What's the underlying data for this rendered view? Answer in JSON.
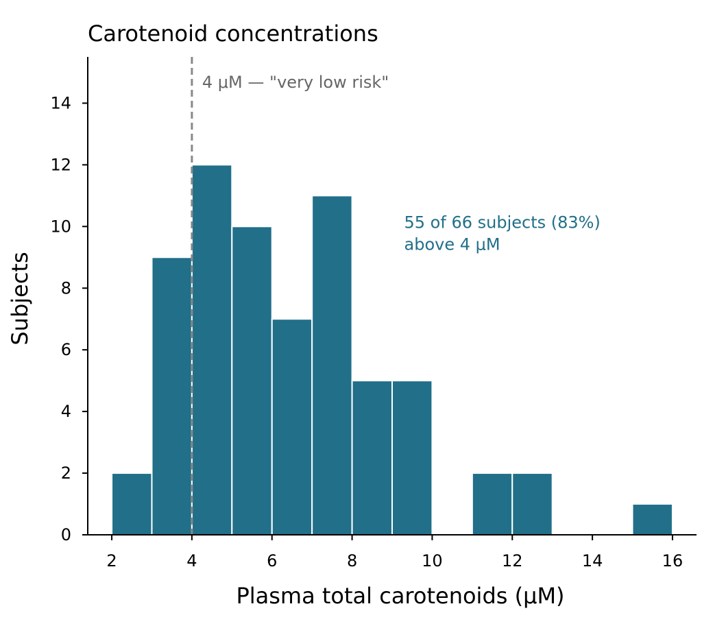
{
  "chart_data": {
    "type": "bar",
    "title": "Carotenoid concentrations",
    "xlabel": "Plasma total carotenoids (μM)",
    "ylabel": "Subjects",
    "bins": [
      {
        "start": 2,
        "end": 3,
        "count": 2
      },
      {
        "start": 3,
        "end": 4,
        "count": 9
      },
      {
        "start": 4,
        "end": 5,
        "count": 12
      },
      {
        "start": 5,
        "end": 6,
        "count": 10
      },
      {
        "start": 6,
        "end": 7,
        "count": 7
      },
      {
        "start": 7,
        "end": 8,
        "count": 11
      },
      {
        "start": 8,
        "end": 9,
        "count": 5
      },
      {
        "start": 9,
        "end": 10,
        "count": 5
      },
      {
        "start": 10,
        "end": 11,
        "count": 0
      },
      {
        "start": 11,
        "end": 12,
        "count": 2
      },
      {
        "start": 12,
        "end": 13,
        "count": 2
      },
      {
        "start": 13,
        "end": 14,
        "count": 0
      },
      {
        "start": 14,
        "end": 15,
        "count": 0
      },
      {
        "start": 15,
        "end": 16,
        "count": 1
      }
    ],
    "xlim": [
      1.4,
      16.6
    ],
    "ylim": [
      0,
      15.5
    ],
    "xticks": [
      2,
      4,
      6,
      8,
      10,
      12,
      14,
      16
    ],
    "yticks": [
      0,
      2,
      4,
      6,
      8,
      10,
      12,
      14
    ],
    "grid": false,
    "reference_line": {
      "x": 4,
      "label": "4 μM — \"very low risk\"",
      "color": "#888888"
    },
    "annotation": {
      "lines": [
        "55 of 66 subjects (83%)",
        "above 4 μM"
      ],
      "x": 9.3,
      "y": 10
    },
    "colors": {
      "bar": "#216f89",
      "annotation": "#216f89",
      "reference_text": "#666666",
      "axis": "#000000"
    }
  }
}
